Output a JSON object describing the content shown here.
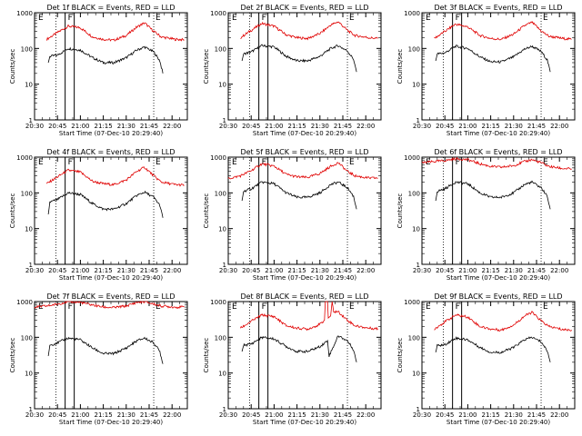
{
  "figure": {
    "colors": {
      "events": "#000000",
      "lld": "#e00000",
      "axes": "#000000"
    }
  },
  "chart_data": [
    {
      "type": "line",
      "title": "Det 1f BLACK = Events, RED = LLD",
      "xlabel": "Start Time (07-Dec-10 20:29:40)",
      "ylabel": "Counts/sec",
      "x_ticks": [
        "20:30",
        "20:45",
        "21:00",
        "21:15",
        "21:30",
        "21:45",
        "22:00"
      ],
      "y_ticks": [
        "1",
        "10",
        "100",
        "1000"
      ],
      "ylim": [
        1,
        1000
      ],
      "yscale": "log",
      "markers": [
        {
          "label": "E",
          "time": "20:44"
        },
        {
          "label": "F",
          "time": "20:53"
        },
        {
          "label": "E",
          "time": "21:48"
        }
      ],
      "series": [
        {
          "color": "red",
          "x": [
            "20:38",
            "20:45",
            "20:52",
            "21:00",
            "21:08",
            "21:15",
            "21:22",
            "21:30",
            "21:37",
            "21:42",
            "21:48",
            "21:53",
            "22:02",
            "22:08"
          ],
          "y": [
            180,
            280,
            420,
            380,
            210,
            180,
            170,
            230,
            400,
            520,
            300,
            210,
            180,
            175
          ]
        },
        {
          "color": "black",
          "x": [
            "20:39",
            "20:40",
            "20:45",
            "20:52",
            "21:00",
            "21:08",
            "21:15",
            "21:22",
            "21:30",
            "21:37",
            "21:42",
            "21:48",
            "21:52",
            "21:54"
          ],
          "y": [
            40,
            60,
            65,
            100,
            90,
            55,
            40,
            40,
            55,
            90,
            110,
            80,
            45,
            20
          ]
        }
      ]
    },
    {
      "type": "line",
      "title": "Det 2f BLACK = Events, RED = LLD",
      "xlabel": "Start Time (07-Dec-10 20:29:40)",
      "ylabel": "Counts/sec",
      "x_ticks": [
        "20:30",
        "20:45",
        "21:00",
        "21:15",
        "21:30",
        "21:45",
        "22:00"
      ],
      "y_ticks": [
        "1",
        "10",
        "100",
        "1000"
      ],
      "ylim": [
        1,
        1000
      ],
      "yscale": "log",
      "markers": [
        {
          "label": "E",
          "time": "20:44"
        },
        {
          "label": "F",
          "time": "20:53"
        },
        {
          "label": "E",
          "time": "21:48"
        }
      ],
      "series": [
        {
          "color": "red",
          "x": [
            "20:38",
            "20:45",
            "20:52",
            "21:00",
            "21:08",
            "21:15",
            "21:22",
            "21:30",
            "21:37",
            "21:42",
            "21:48",
            "21:53",
            "22:02",
            "22:08"
          ],
          "y": [
            200,
            320,
            500,
            420,
            240,
            200,
            190,
            260,
            450,
            560,
            320,
            230,
            200,
            190
          ]
        },
        {
          "color": "black",
          "x": [
            "20:39",
            "20:40",
            "20:45",
            "20:52",
            "21:00",
            "21:08",
            "21:15",
            "21:22",
            "21:30",
            "21:37",
            "21:42",
            "21:48",
            "21:52",
            "21:54"
          ],
          "y": [
            45,
            70,
            80,
            120,
            110,
            60,
            45,
            45,
            60,
            100,
            120,
            85,
            50,
            22
          ]
        }
      ]
    },
    {
      "type": "line",
      "title": "Det 3f BLACK = Events, RED = LLD",
      "xlabel": "Start Time (07-Dec-10 20:29:40)",
      "ylabel": "Counts/sec",
      "x_ticks": [
        "20:30",
        "20:45",
        "21:00",
        "21:15",
        "21:30",
        "21:45",
        "22:00"
      ],
      "y_ticks": [
        "1",
        "10",
        "100",
        "1000"
      ],
      "ylim": [
        1,
        1000
      ],
      "yscale": "log",
      "markers": [
        {
          "label": "E",
          "time": "20:44"
        },
        {
          "label": "F",
          "time": "20:53"
        },
        {
          "label": "E",
          "time": "21:48"
        }
      ],
      "series": [
        {
          "color": "red",
          "x": [
            "20:38",
            "20:45",
            "20:52",
            "21:00",
            "21:08",
            "21:15",
            "21:22",
            "21:30",
            "21:37",
            "21:42",
            "21:48",
            "21:53",
            "22:02",
            "22:08"
          ],
          "y": [
            190,
            300,
            480,
            400,
            230,
            190,
            180,
            250,
            430,
            540,
            310,
            220,
            190,
            180
          ]
        },
        {
          "color": "black",
          "x": [
            "20:39",
            "20:40",
            "20:45",
            "20:52",
            "21:00",
            "21:08",
            "21:15",
            "21:22",
            "21:30",
            "21:37",
            "21:42",
            "21:48",
            "21:52",
            "21:54"
          ],
          "y": [
            45,
            70,
            75,
            115,
            100,
            58,
            42,
            42,
            58,
            95,
            115,
            82,
            48,
            22
          ]
        }
      ]
    },
    {
      "type": "line",
      "title": "Det 4f BLACK = Events, RED = LLD",
      "xlabel": "Start Time (07-Dec-10 20:29:40)",
      "ylabel": "Counts/sec",
      "x_ticks": [
        "20:30",
        "20:45",
        "21:00",
        "21:15",
        "21:30",
        "21:45",
        "22:00"
      ],
      "y_ticks": [
        "1",
        "10",
        "100",
        "1000"
      ],
      "ylim": [
        1,
        1000
      ],
      "yscale": "log",
      "markers": [
        {
          "label": "E",
          "time": "20:44"
        },
        {
          "label": "F",
          "time": "20:53"
        },
        {
          "label": "E",
          "time": "21:48"
        }
      ],
      "series": [
        {
          "color": "red",
          "x": [
            "20:38",
            "20:45",
            "20:52",
            "21:00",
            "21:08",
            "21:15",
            "21:22",
            "21:30",
            "21:37",
            "21:42",
            "21:48",
            "21:53",
            "22:02",
            "22:08"
          ],
          "y": [
            180,
            280,
            430,
            380,
            210,
            180,
            170,
            230,
            400,
            520,
            300,
            200,
            170,
            165
          ]
        },
        {
          "color": "black",
          "x": [
            "20:39",
            "20:40",
            "20:45",
            "20:52",
            "21:00",
            "21:08",
            "21:15",
            "21:22",
            "21:30",
            "21:37",
            "21:42",
            "21:48",
            "21:52",
            "21:54"
          ],
          "y": [
            25,
            55,
            65,
            100,
            90,
            50,
            35,
            35,
            50,
            85,
            105,
            75,
            45,
            20
          ]
        }
      ]
    },
    {
      "type": "line",
      "title": "Det 5f BLACK = Events, RED = LLD",
      "xlabel": "Start Time (07-Dec-10 20:29:40)",
      "ylabel": "Counts/sec",
      "x_ticks": [
        "20:30",
        "20:45",
        "21:00",
        "21:15",
        "21:30",
        "21:45",
        "22:00"
      ],
      "y_ticks": [
        "1",
        "10",
        "100",
        "1000"
      ],
      "ylim": [
        1,
        1000
      ],
      "yscale": "log",
      "markers": [
        {
          "label": "E",
          "time": "20:44"
        },
        {
          "label": "F",
          "time": "20:53"
        },
        {
          "label": "E",
          "time": "21:48"
        }
      ],
      "series": [
        {
          "color": "red",
          "x": [
            "20:30",
            "20:38",
            "20:45",
            "20:52",
            "21:00",
            "21:08",
            "21:15",
            "21:22",
            "21:30",
            "21:37",
            "21:42",
            "21:48",
            "21:53",
            "22:02",
            "22:08"
          ],
          "y": [
            250,
            300,
            420,
            650,
            560,
            330,
            280,
            270,
            350,
            550,
            700,
            400,
            300,
            260,
            260
          ]
        },
        {
          "color": "black",
          "x": [
            "20:39",
            "20:40",
            "20:45",
            "20:52",
            "21:00",
            "21:08",
            "21:15",
            "21:22",
            "21:30",
            "21:37",
            "21:42",
            "21:48",
            "21:52",
            "21:54"
          ],
          "y": [
            60,
            110,
            130,
            200,
            180,
            100,
            75,
            75,
            100,
            170,
            200,
            140,
            80,
            35
          ]
        }
      ]
    },
    {
      "type": "line",
      "title": "Det 6f BLACK = Events, RED = LLD",
      "xlabel": "Start Time (07-Dec-10 20:29:40)",
      "ylabel": "Counts/sec",
      "x_ticks": [
        "20:30",
        "20:45",
        "21:00",
        "21:15",
        "21:30",
        "21:45",
        "22:00"
      ],
      "y_ticks": [
        "1",
        "10",
        "100",
        "1000"
      ],
      "ylim": [
        1,
        1000
      ],
      "yscale": "log",
      "markers": [
        {
          "label": "E",
          "time": "20:44"
        },
        {
          "label": "F",
          "time": "20:53"
        },
        {
          "label": "E",
          "time": "21:48"
        }
      ],
      "series": [
        {
          "color": "red",
          "x": [
            "20:30",
            "20:38",
            "20:45",
            "20:52",
            "21:00",
            "21:08",
            "21:15",
            "21:22",
            "21:30",
            "21:37",
            "21:42",
            "21:48",
            "21:53",
            "22:02",
            "22:08"
          ],
          "y": [
            700,
            750,
            800,
            900,
            850,
            650,
            550,
            520,
            580,
            750,
            850,
            700,
            550,
            480,
            470
          ]
        },
        {
          "color": "black",
          "x": [
            "20:39",
            "20:40",
            "20:45",
            "20:52",
            "21:00",
            "21:08",
            "21:15",
            "21:22",
            "21:30",
            "21:37",
            "21:42",
            "21:48",
            "21:52",
            "21:54"
          ],
          "y": [
            60,
            110,
            130,
            200,
            180,
            100,
            75,
            75,
            100,
            170,
            200,
            140,
            80,
            35
          ]
        }
      ]
    },
    {
      "type": "line",
      "title": "Det 7f BLACK = Events, RED = LLD",
      "xlabel": "Start Time (07-Dec-10 20:29:40)",
      "ylabel": "Counts/sec",
      "x_ticks": [
        "20:30",
        "20:45",
        "21:00",
        "21:15",
        "21:30",
        "21:45",
        "22:00"
      ],
      "y_ticks": [
        "1",
        "10",
        "100",
        "1000"
      ],
      "ylim": [
        1,
        1000
      ],
      "yscale": "log",
      "markers": [
        {
          "label": "E",
          "time": "20:44"
        },
        {
          "label": "F",
          "time": "20:53"
        },
        {
          "label": "E",
          "time": "21:48"
        }
      ],
      "series": [
        {
          "color": "red",
          "x": [
            "20:30",
            "20:38",
            "20:45",
            "20:52",
            "21:00",
            "21:08",
            "21:15",
            "21:22",
            "21:30",
            "21:37",
            "21:42",
            "21:48",
            "21:53",
            "22:02",
            "22:08"
          ],
          "y": [
            700,
            750,
            850,
            1000,
            950,
            800,
            700,
            680,
            750,
            950,
            1000,
            850,
            750,
            700,
            700
          ]
        },
        {
          "color": "black",
          "x": [
            "20:39",
            "20:40",
            "20:45",
            "20:52",
            "21:00",
            "21:08",
            "21:15",
            "21:22",
            "21:30",
            "21:37",
            "21:42",
            "21:48",
            "21:52",
            "21:54"
          ],
          "y": [
            30,
            60,
            70,
            95,
            85,
            50,
            35,
            35,
            50,
            80,
            95,
            70,
            40,
            18
          ]
        }
      ]
    },
    {
      "type": "line",
      "title": "Det 8f BLACK = Events, RED = LLD",
      "xlabel": "Start Time (07-Dec-10 20:29:40)",
      "ylabel": "Counts/sec",
      "x_ticks": [
        "20:30",
        "20:45",
        "21:00",
        "21:15",
        "21:30",
        "21:45",
        "22:00"
      ],
      "y_ticks": [
        "1",
        "10",
        "100",
        "1000"
      ],
      "ylim": [
        1,
        1000
      ],
      "yscale": "log",
      "markers": [
        {
          "label": "E",
          "time": "20:44"
        },
        {
          "label": "F",
          "time": "20:53"
        },
        {
          "label": "E",
          "time": "21:48"
        }
      ],
      "series": [
        {
          "color": "red",
          "x": [
            "20:38",
            "20:45",
            "20:52",
            "21:00",
            "21:08",
            "21:15",
            "21:22",
            "21:30",
            "21:33",
            "21:33.5",
            "21:35",
            "21:35.5",
            "21:37",
            "21:38",
            "21:39",
            "21:42",
            "21:48",
            "21:53",
            "22:02",
            "22:08"
          ],
          "y": [
            180,
            280,
            420,
            380,
            210,
            180,
            170,
            230,
            300,
            1000,
            1000,
            350,
            400,
            1000,
            520,
            520,
            300,
            210,
            180,
            175
          ]
        },
        {
          "color": "black",
          "x": [
            "20:39",
            "20:40",
            "20:45",
            "20:52",
            "21:00",
            "21:08",
            "21:15",
            "21:22",
            "21:30",
            "21:35",
            "21:36",
            "21:42",
            "21:48",
            "21:52",
            "21:54"
          ],
          "y": [
            40,
            60,
            65,
            100,
            90,
            55,
            40,
            40,
            55,
            80,
            30,
            110,
            80,
            45,
            20
          ]
        }
      ]
    },
    {
      "type": "line",
      "title": "Det 9f BLACK = Events, RED = LLD",
      "xlabel": "Start Time (07-Dec-10 20:29:40)",
      "ylabel": "Counts/sec",
      "x_ticks": [
        "20:30",
        "20:45",
        "21:00",
        "21:15",
        "21:30",
        "21:45",
        "22:00"
      ],
      "y_ticks": [
        "1",
        "10",
        "100",
        "1000"
      ],
      "ylim": [
        1,
        1000
      ],
      "yscale": "log",
      "markers": [
        {
          "label": "E",
          "time": "20:44"
        },
        {
          "label": "F",
          "time": "20:53"
        },
        {
          "label": "E",
          "time": "21:48"
        }
      ],
      "series": [
        {
          "color": "red",
          "x": [
            "20:38",
            "20:45",
            "20:52",
            "21:00",
            "21:08",
            "21:15",
            "21:22",
            "21:30",
            "21:37",
            "21:42",
            "21:48",
            "21:53",
            "22:02",
            "22:08"
          ],
          "y": [
            170,
            270,
            420,
            370,
            200,
            170,
            160,
            220,
            390,
            500,
            290,
            200,
            165,
            160
          ]
        },
        {
          "color": "black",
          "x": [
            "20:39",
            "20:40",
            "20:45",
            "20:52",
            "21:00",
            "21:08",
            "21:15",
            "21:22",
            "21:30",
            "21:37",
            "21:42",
            "21:48",
            "21:52",
            "21:54"
          ],
          "y": [
            38,
            58,
            62,
            95,
            85,
            52,
            38,
            38,
            52,
            85,
            100,
            75,
            42,
            20
          ]
        }
      ]
    }
  ]
}
